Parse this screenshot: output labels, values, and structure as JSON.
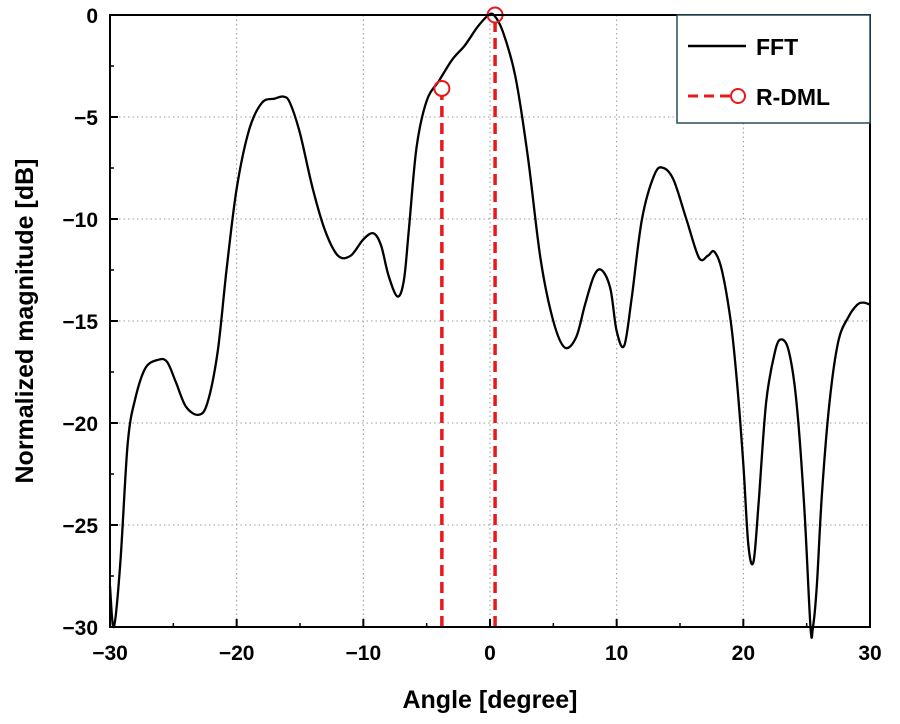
{
  "chart_data": {
    "type": "line",
    "xlabel": "Angle [degree]",
    "ylabel": "Normalized magnitude [dB]",
    "xlim": [
      -30,
      30
    ],
    "ylim": [
      -30,
      0
    ],
    "xticks": [
      -30,
      -20,
      -10,
      0,
      10,
      20,
      30
    ],
    "yticks": [
      0,
      -5,
      -10,
      -15,
      -20,
      -25,
      -30
    ],
    "xtick_labels": [
      "−30",
      "−20",
      "−10",
      "0",
      "10",
      "20",
      "30"
    ],
    "ytick_labels": [
      "0",
      "−5",
      "−10",
      "−15",
      "−20",
      "−25",
      "−30"
    ],
    "grid": true,
    "legend_position": "top-right",
    "series": [
      {
        "name": "FFT",
        "color": "#000000",
        "style": "solid",
        "x": [
          -30,
          -29.7,
          -29.2,
          -28.6,
          -28.0,
          -27.2,
          -26.2,
          -25.5,
          -24.8,
          -24.0,
          -23.0,
          -22.3,
          -21.5,
          -20.8,
          -20.0,
          -19.0,
          -18.0,
          -17.0,
          -16.3,
          -15.8,
          -15.0,
          -14.0,
          -13.0,
          -12.0,
          -11.0,
          -10.0,
          -9.2,
          -8.6,
          -8.0,
          -7.3,
          -6.8,
          -6.4,
          -5.8,
          -5.0,
          -4.0,
          -3.0,
          -2.0,
          -1.0,
          -0.2,
          0.3,
          1.0,
          2.0,
          3.0,
          4.0,
          5.0,
          5.9,
          6.8,
          7.5,
          8.2,
          8.8,
          9.5,
          10.0,
          10.6,
          11.2,
          12.0,
          13.0,
          13.7,
          14.5,
          15.5,
          16.5,
          17.2,
          17.7,
          18.3,
          19.0,
          19.5,
          20.0,
          20.4,
          20.8,
          21.2,
          21.8,
          22.5,
          23.0,
          23.6,
          24.2,
          24.8,
          25.3,
          25.5,
          25.8,
          26.2,
          26.8,
          27.5,
          28.3,
          29.0,
          29.5,
          30.0
        ],
        "y": [
          -28.0,
          -30.0,
          -27.0,
          -21.0,
          -18.8,
          -17.3,
          -16.9,
          -17.0,
          -18.0,
          -19.2,
          -19.6,
          -19.0,
          -16.5,
          -12.5,
          -8.5,
          -5.6,
          -4.3,
          -4.1,
          -4.0,
          -4.3,
          -5.8,
          -8.5,
          -10.6,
          -11.8,
          -11.8,
          -11.0,
          -10.7,
          -11.3,
          -12.8,
          -13.8,
          -13.0,
          -10.5,
          -6.5,
          -4.2,
          -3.2,
          -2.2,
          -1.5,
          -0.6,
          -0.05,
          0.0,
          -0.8,
          -3.0,
          -7.0,
          -12.0,
          -15.0,
          -16.3,
          -15.8,
          -14.2,
          -12.8,
          -12.5,
          -13.4,
          -15.5,
          -16.2,
          -13.8,
          -10.0,
          -7.8,
          -7.5,
          -8.1,
          -10.0,
          -11.9,
          -11.8,
          -11.6,
          -12.5,
          -15.0,
          -18.0,
          -22.0,
          -26.0,
          -26.8,
          -24.0,
          -19.0,
          -16.5,
          -15.9,
          -16.5,
          -19.0,
          -24.0,
          -30.0,
          -30.0,
          -28.0,
          -23.5,
          -19.0,
          -16.0,
          -14.8,
          -14.2,
          -14.1,
          -14.2
        ]
      },
      {
        "name": "R-DML",
        "color": "#e8191c",
        "style": "dashed",
        "marker": "circle",
        "x": [
          -3.8,
          0.4
        ],
        "y": [
          -3.6,
          0.0
        ]
      }
    ]
  }
}
